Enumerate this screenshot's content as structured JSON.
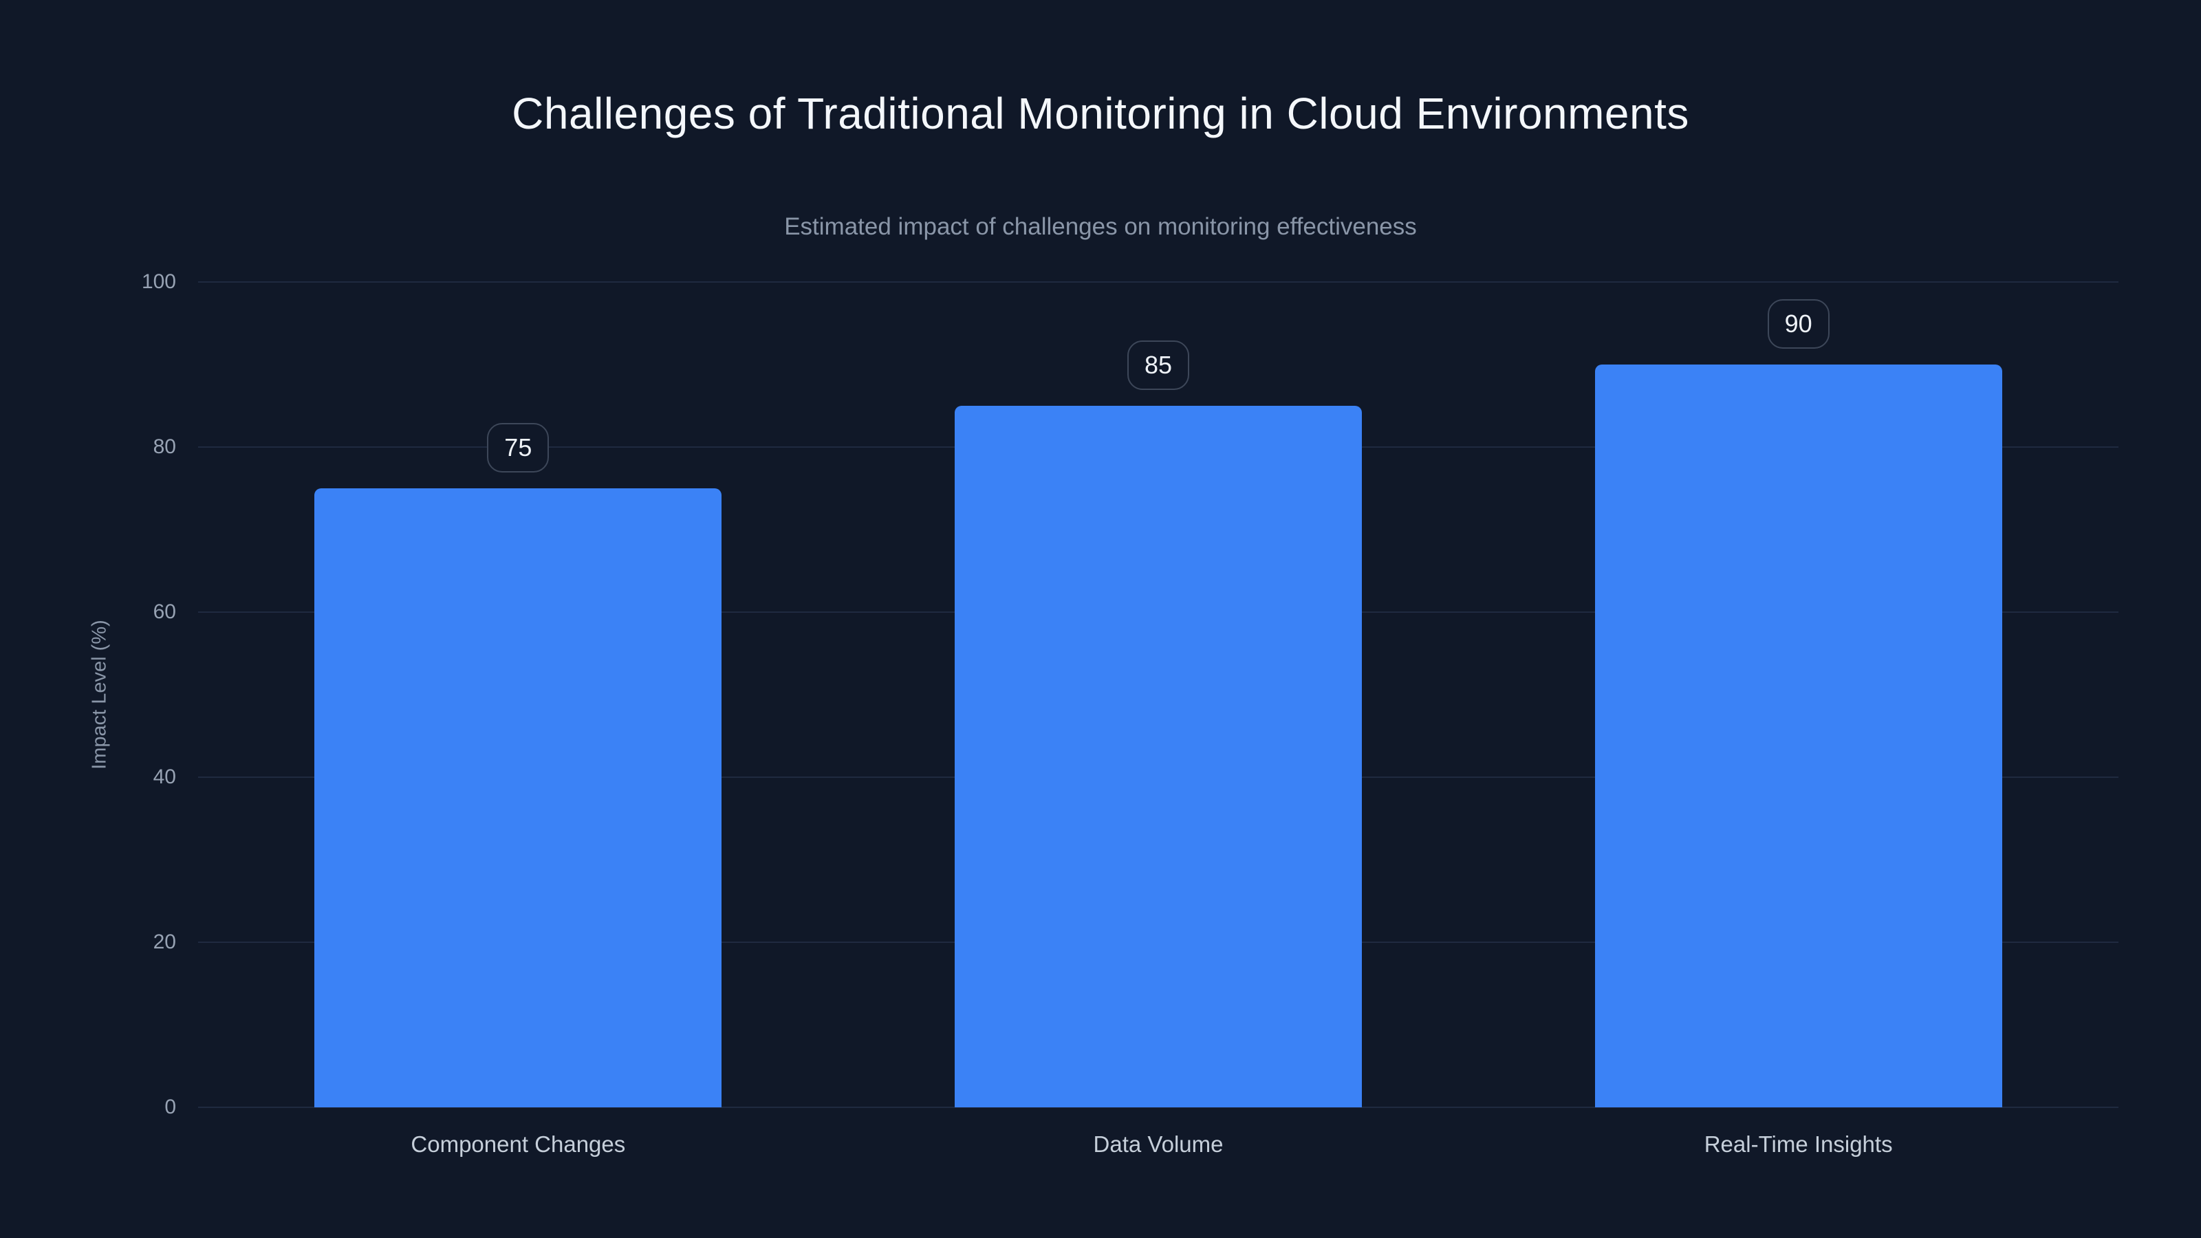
{
  "chart_data": {
    "type": "bar",
    "title": "Challenges of Traditional Monitoring in Cloud Environments",
    "subtitle": "Estimated impact of challenges on monitoring effectiveness",
    "categories": [
      "Component Changes",
      "Data Volume",
      "Real-Time Insights"
    ],
    "values": [
      75,
      85,
      90
    ],
    "xlabel": "",
    "ylabel": "Impact Level (%)",
    "ylim": [
      0,
      100
    ],
    "yticks": [
      0,
      20,
      40,
      60,
      80,
      100
    ],
    "grid": true,
    "legend": "none",
    "value_labels": "rounded badge above each bar",
    "colors": {
      "background": "#101828",
      "bar": "#3b82f6",
      "gridline": "#1f2a40",
      "title": "#f4f7fb",
      "subtitle": "#8a96a8",
      "tick_label": "#97a2b3",
      "axis_title": "#8a96a8",
      "category_label": "#c6cfda",
      "badge_border": "#3d4759",
      "badge_text": "#eef2f7",
      "badge_background": "#101828"
    }
  }
}
